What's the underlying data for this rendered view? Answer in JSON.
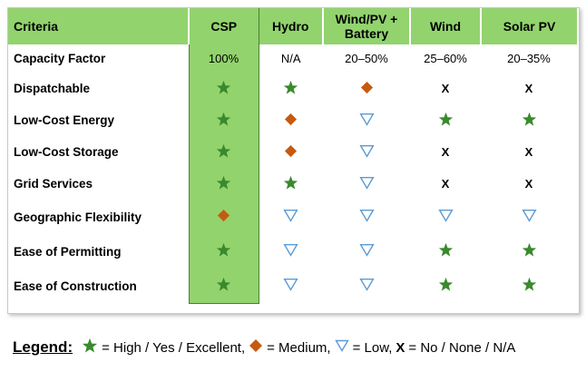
{
  "colors": {
    "header_green": "#92d36e",
    "star": "#3a8a2c",
    "diamond": "#c55a11",
    "triangle": "#5b9bd5"
  },
  "header": [
    "Criteria",
    "CSP",
    "Hydro",
    "Wind/PV + Battery",
    "Wind",
    "Solar PV"
  ],
  "rows": [
    {
      "criteria": "Capacity Factor",
      "cells": [
        {
          "text": "100%"
        },
        {
          "text": "N/A"
        },
        {
          "text": "20–50%"
        },
        {
          "text": "25–60%"
        },
        {
          "text": "20–35%"
        }
      ]
    },
    {
      "criteria": "Dispatchable",
      "cells": [
        {
          "icon": "star"
        },
        {
          "icon": "star"
        },
        {
          "icon": "diamond"
        },
        {
          "icon": "x"
        },
        {
          "icon": "x"
        }
      ]
    },
    {
      "criteria": "Low-Cost Energy",
      "cells": [
        {
          "icon": "star"
        },
        {
          "icon": "diamond"
        },
        {
          "icon": "triangle"
        },
        {
          "icon": "star"
        },
        {
          "icon": "star"
        }
      ]
    },
    {
      "criteria": "Low-Cost Storage",
      "cells": [
        {
          "icon": "star"
        },
        {
          "icon": "diamond"
        },
        {
          "icon": "triangle"
        },
        {
          "icon": "x"
        },
        {
          "icon": "x"
        }
      ]
    },
    {
      "criteria": "Grid Services",
      "cells": [
        {
          "icon": "star"
        },
        {
          "icon": "star"
        },
        {
          "icon": "triangle"
        },
        {
          "icon": "x"
        },
        {
          "icon": "x"
        }
      ]
    },
    {
      "criteria": "Geographic Flexibility",
      "cells": [
        {
          "icon": "diamond"
        },
        {
          "icon": "triangle"
        },
        {
          "icon": "triangle"
        },
        {
          "icon": "triangle"
        },
        {
          "icon": "triangle"
        }
      ]
    },
    {
      "criteria": "Ease of Permitting",
      "cells": [
        {
          "icon": "star"
        },
        {
          "icon": "triangle"
        },
        {
          "icon": "triangle"
        },
        {
          "icon": "star"
        },
        {
          "icon": "star"
        }
      ]
    },
    {
      "criteria": "Ease of Construction",
      "cells": [
        {
          "icon": "star"
        },
        {
          "icon": "triangle"
        },
        {
          "icon": "triangle"
        },
        {
          "icon": "star"
        },
        {
          "icon": "star"
        }
      ]
    }
  ],
  "legend": {
    "title": "Legend:",
    "high": "= High / Yes / Excellent,",
    "medium": "= Medium,",
    "low": "= Low,",
    "x_symbol": "X",
    "no": "= No / None / N/A"
  }
}
